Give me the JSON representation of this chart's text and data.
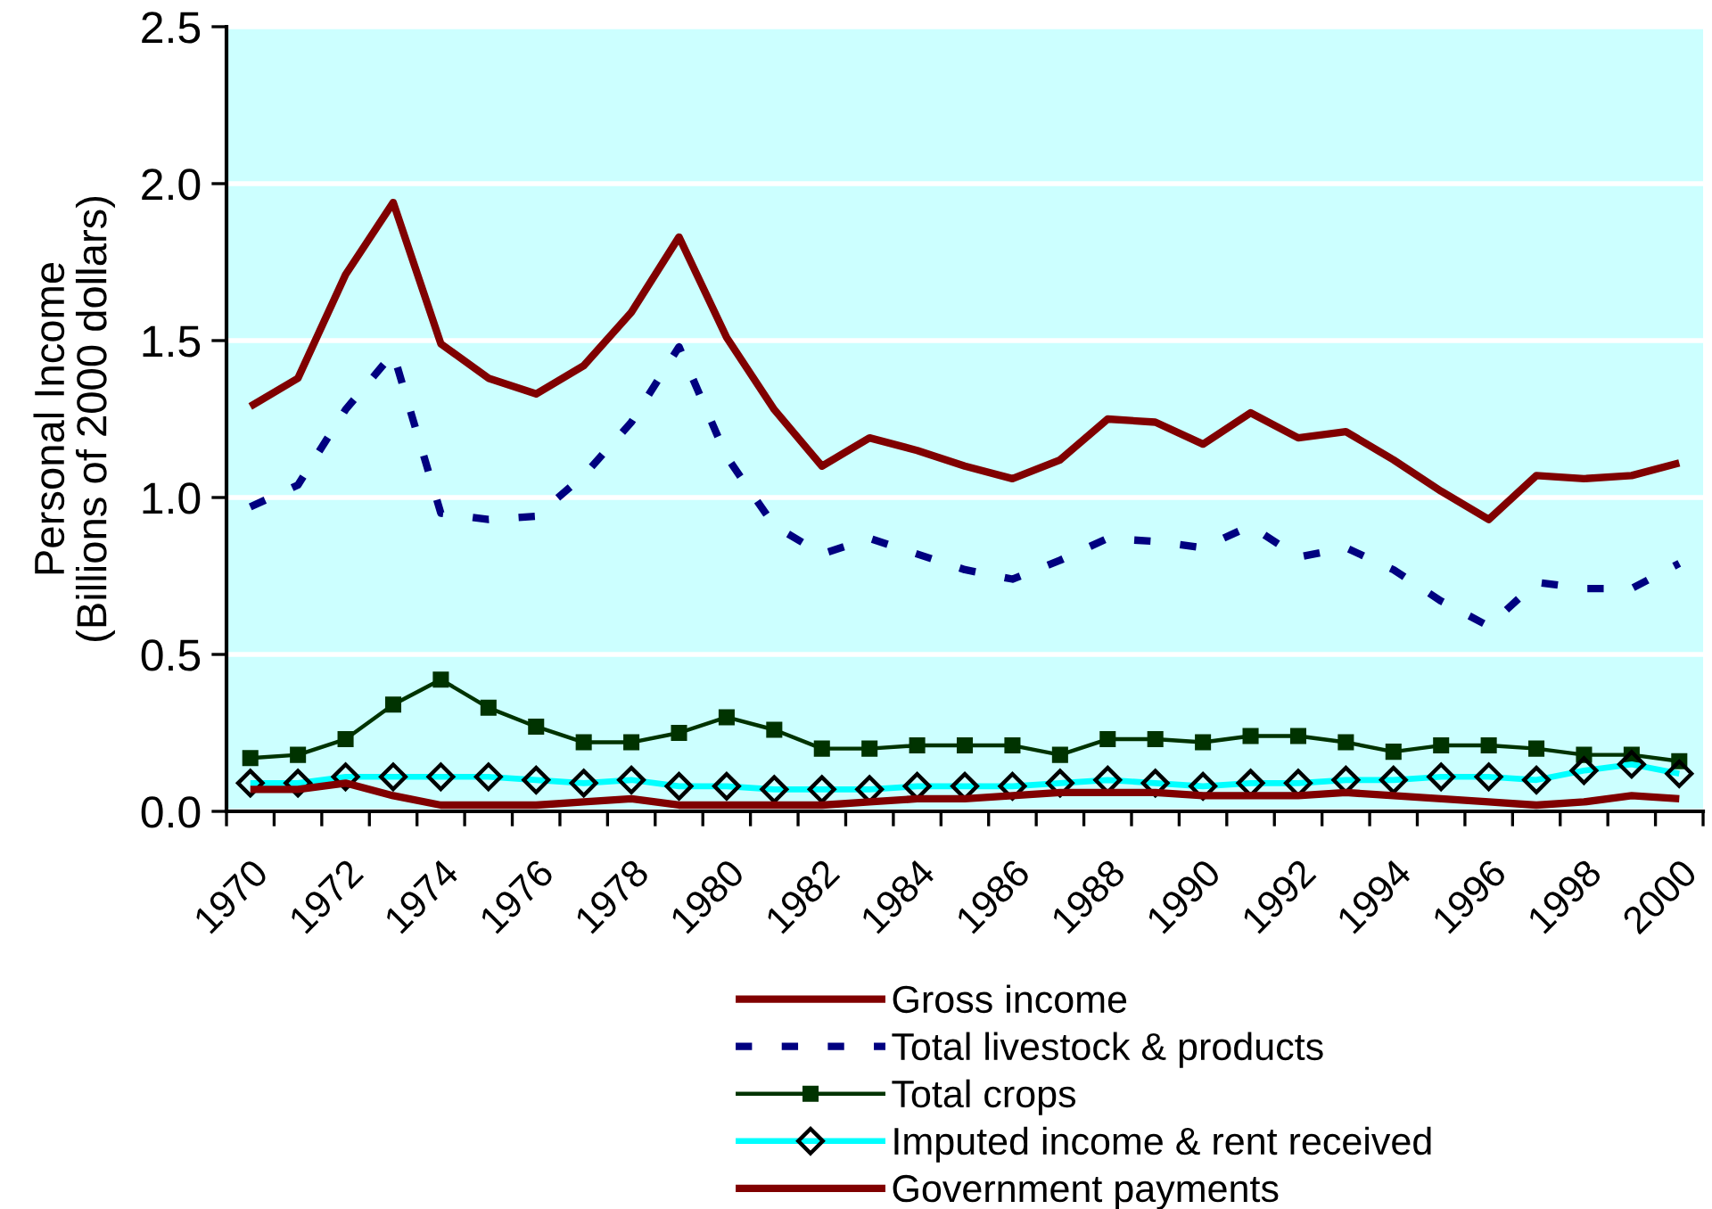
{
  "chart_data": {
    "type": "line",
    "ylabel": "Personal Income\n(Billions of 2000 dollars)",
    "categories": [
      "1970",
      null,
      "1972",
      null,
      "1974",
      null,
      "1976",
      null,
      "1978",
      null,
      "1980",
      null,
      "1982",
      null,
      "1984",
      null,
      "1986",
      null,
      "1988",
      null,
      "1990",
      null,
      "1992",
      null,
      "1994",
      null,
      "1996",
      null,
      "1998",
      null,
      "2000"
    ],
    "series": [
      {
        "name": "Gross income",
        "color": "#800000",
        "marker": "none",
        "line_style": "solid",
        "values": [
          1.29,
          1.38,
          1.71,
          1.94,
          1.49,
          1.38,
          1.33,
          1.42,
          1.59,
          1.83,
          1.51,
          1.28,
          1.1,
          1.19,
          1.15,
          1.1,
          1.06,
          1.12,
          1.25,
          1.24,
          1.17,
          1.27,
          1.19,
          1.21,
          1.12,
          1.02,
          0.93,
          1.07,
          1.06,
          1.07,
          1.11
        ]
      },
      {
        "name": "Total livestock & products",
        "color": "#000080",
        "marker": "none",
        "line_style": "dashed",
        "values": [
          0.97,
          1.04,
          1.28,
          1.46,
          0.95,
          0.93,
          0.94,
          1.07,
          1.24,
          1.48,
          1.13,
          0.91,
          0.82,
          0.87,
          0.82,
          0.77,
          0.74,
          0.8,
          0.87,
          0.86,
          0.84,
          0.91,
          0.81,
          0.84,
          0.77,
          0.67,
          0.59,
          0.73,
          0.71,
          0.71,
          0.79
        ]
      },
      {
        "name": "Total crops",
        "color": "#003300",
        "marker": "square",
        "line_style": "solid",
        "values": [
          0.17,
          0.18,
          0.23,
          0.34,
          0.42,
          0.33,
          0.27,
          0.22,
          0.22,
          0.25,
          0.3,
          0.26,
          0.2,
          0.2,
          0.21,
          0.21,
          0.21,
          0.18,
          0.23,
          0.23,
          0.22,
          0.24,
          0.24,
          0.22,
          0.19,
          0.21,
          0.21,
          0.2,
          0.18,
          0.18,
          0.16
        ]
      },
      {
        "name": "Imputed income & rent received",
        "color": "#00ffff",
        "marker": "diamond",
        "line_style": "solid",
        "values": [
          0.09,
          0.09,
          0.11,
          0.11,
          0.11,
          0.11,
          0.1,
          0.09,
          0.1,
          0.08,
          0.08,
          0.07,
          0.07,
          0.07,
          0.08,
          0.08,
          0.08,
          0.09,
          0.1,
          0.09,
          0.08,
          0.09,
          0.09,
          0.1,
          0.1,
          0.11,
          0.11,
          0.1,
          0.13,
          0.15,
          0.12
        ]
      },
      {
        "name": "Government payments",
        "color": "#800000",
        "marker": "none",
        "line_style": "solid",
        "values": [
          0.07,
          0.07,
          0.09,
          0.05,
          0.02,
          0.02,
          0.02,
          0.03,
          0.04,
          0.02,
          0.02,
          0.02,
          0.02,
          0.03,
          0.04,
          0.04,
          0.05,
          0.06,
          0.06,
          0.06,
          0.05,
          0.05,
          0.05,
          0.06,
          0.05,
          0.04,
          0.03,
          0.02,
          0.03,
          0.05,
          0.04
        ]
      }
    ],
    "ylim": [
      0,
      2.5
    ],
    "yticks": [
      {
        "value": 0,
        "label": "0.0"
      },
      0.5,
      {
        "value": 1,
        "label": "1.0"
      },
      1.5,
      {
        "value": 2,
        "label": "2.0"
      },
      2.5
    ],
    "grid": "y",
    "legend": "bottom"
  }
}
